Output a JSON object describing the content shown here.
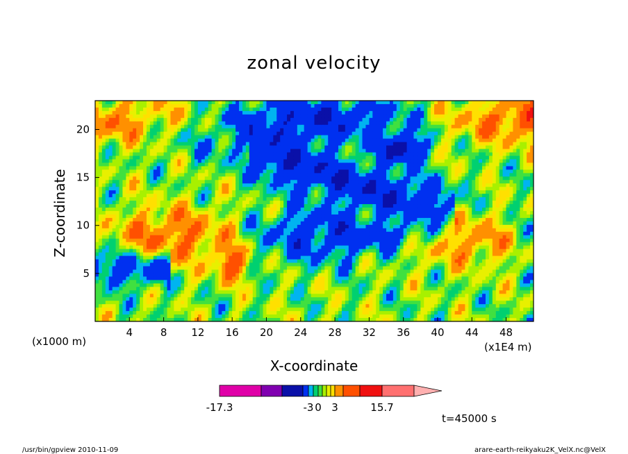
{
  "chart_data": {
    "type": "heatmap",
    "title": "zonal velocity",
    "xlabel": "X-coordinate",
    "ylabel": "Z-coordinate",
    "x_unit_left": "(x1000 m)",
    "x_unit_right": "(x1E4 m)",
    "x_ticks": [
      4,
      8,
      12,
      16,
      20,
      24,
      28,
      32,
      36,
      40,
      44,
      48
    ],
    "y_ticks": [
      5,
      10,
      15,
      20
    ],
    "xlim": [
      0,
      51.2
    ],
    "ylim": [
      0,
      23
    ],
    "colorbar": {
      "levels": [
        -17.3,
        -12,
        -7,
        -3,
        -2,
        -1,
        0,
        1,
        2,
        3,
        5,
        8,
        10,
        15.7
      ],
      "tick_labels": [
        "-17.3",
        "-3",
        "0",
        "3",
        "15.7"
      ],
      "colors": [
        "#e000a8",
        "#8000b0",
        "#0a10a8",
        "#0030f0",
        "#00b4f0",
        "#00d070",
        "#40e040",
        "#a8f000",
        "#e8f000",
        "#ffe000",
        "#ff9000",
        "#ff5000",
        "#f01010",
        "#ff7070",
        "#ffb0b0"
      ]
    },
    "timestamp": "t=45000 s"
  },
  "footer": {
    "left": "/usr/bin/gpview   2010-11-09",
    "right": "arare-earth-reikyaku2K_VelX.nc@VelX"
  }
}
